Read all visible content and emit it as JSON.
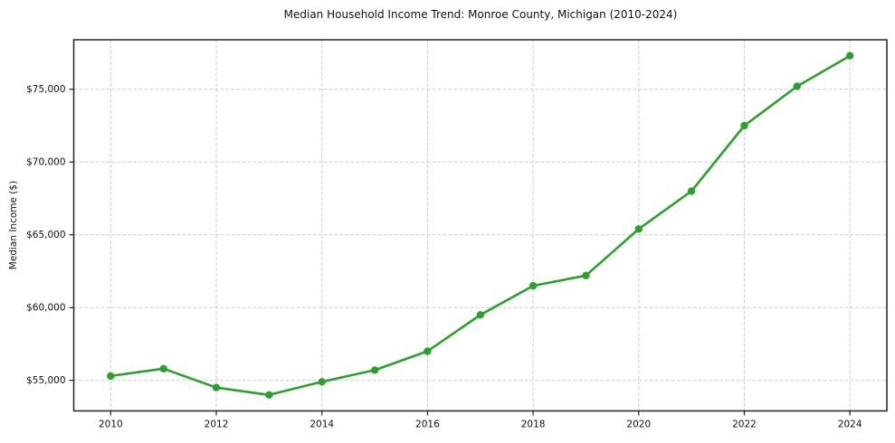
{
  "chart_data": {
    "type": "line",
    "title": "Median Household Income Trend: Monroe County, Michigan (2010-2024)",
    "xlabel": "",
    "ylabel": "Median Income ($)",
    "x": [
      2010,
      2011,
      2012,
      2013,
      2014,
      2015,
      2016,
      2017,
      2018,
      2019,
      2020,
      2021,
      2022,
      2023,
      2024
    ],
    "series": [
      {
        "name": "Median Household Income",
        "values": [
          55300,
          55800,
          54500,
          54000,
          54900,
          55700,
          57000,
          59500,
          61500,
          62200,
          65400,
          68000,
          72500,
          75200,
          77300
        ],
        "color": "#2ca02c",
        "marker": "circle"
      }
    ],
    "xlim": [
      2009.3,
      2024.7
    ],
    "ylim": [
      52900,
      78400
    ],
    "xticks": [
      2010,
      2012,
      2014,
      2016,
      2018,
      2020,
      2022,
      2024
    ],
    "xtick_labels": [
      "2010",
      "2012",
      "2014",
      "2016",
      "2018",
      "2020",
      "2022",
      "2024"
    ],
    "yticks": [
      55000,
      60000,
      65000,
      70000,
      75000
    ],
    "ytick_labels": [
      "$55,000",
      "$60,000",
      "$65,000",
      "$70,000",
      "$75,000"
    ],
    "grid": "dashed",
    "grid_color": "#cccccc",
    "axis_color": "#222222",
    "text_color": "#111111",
    "legend": "none"
  }
}
